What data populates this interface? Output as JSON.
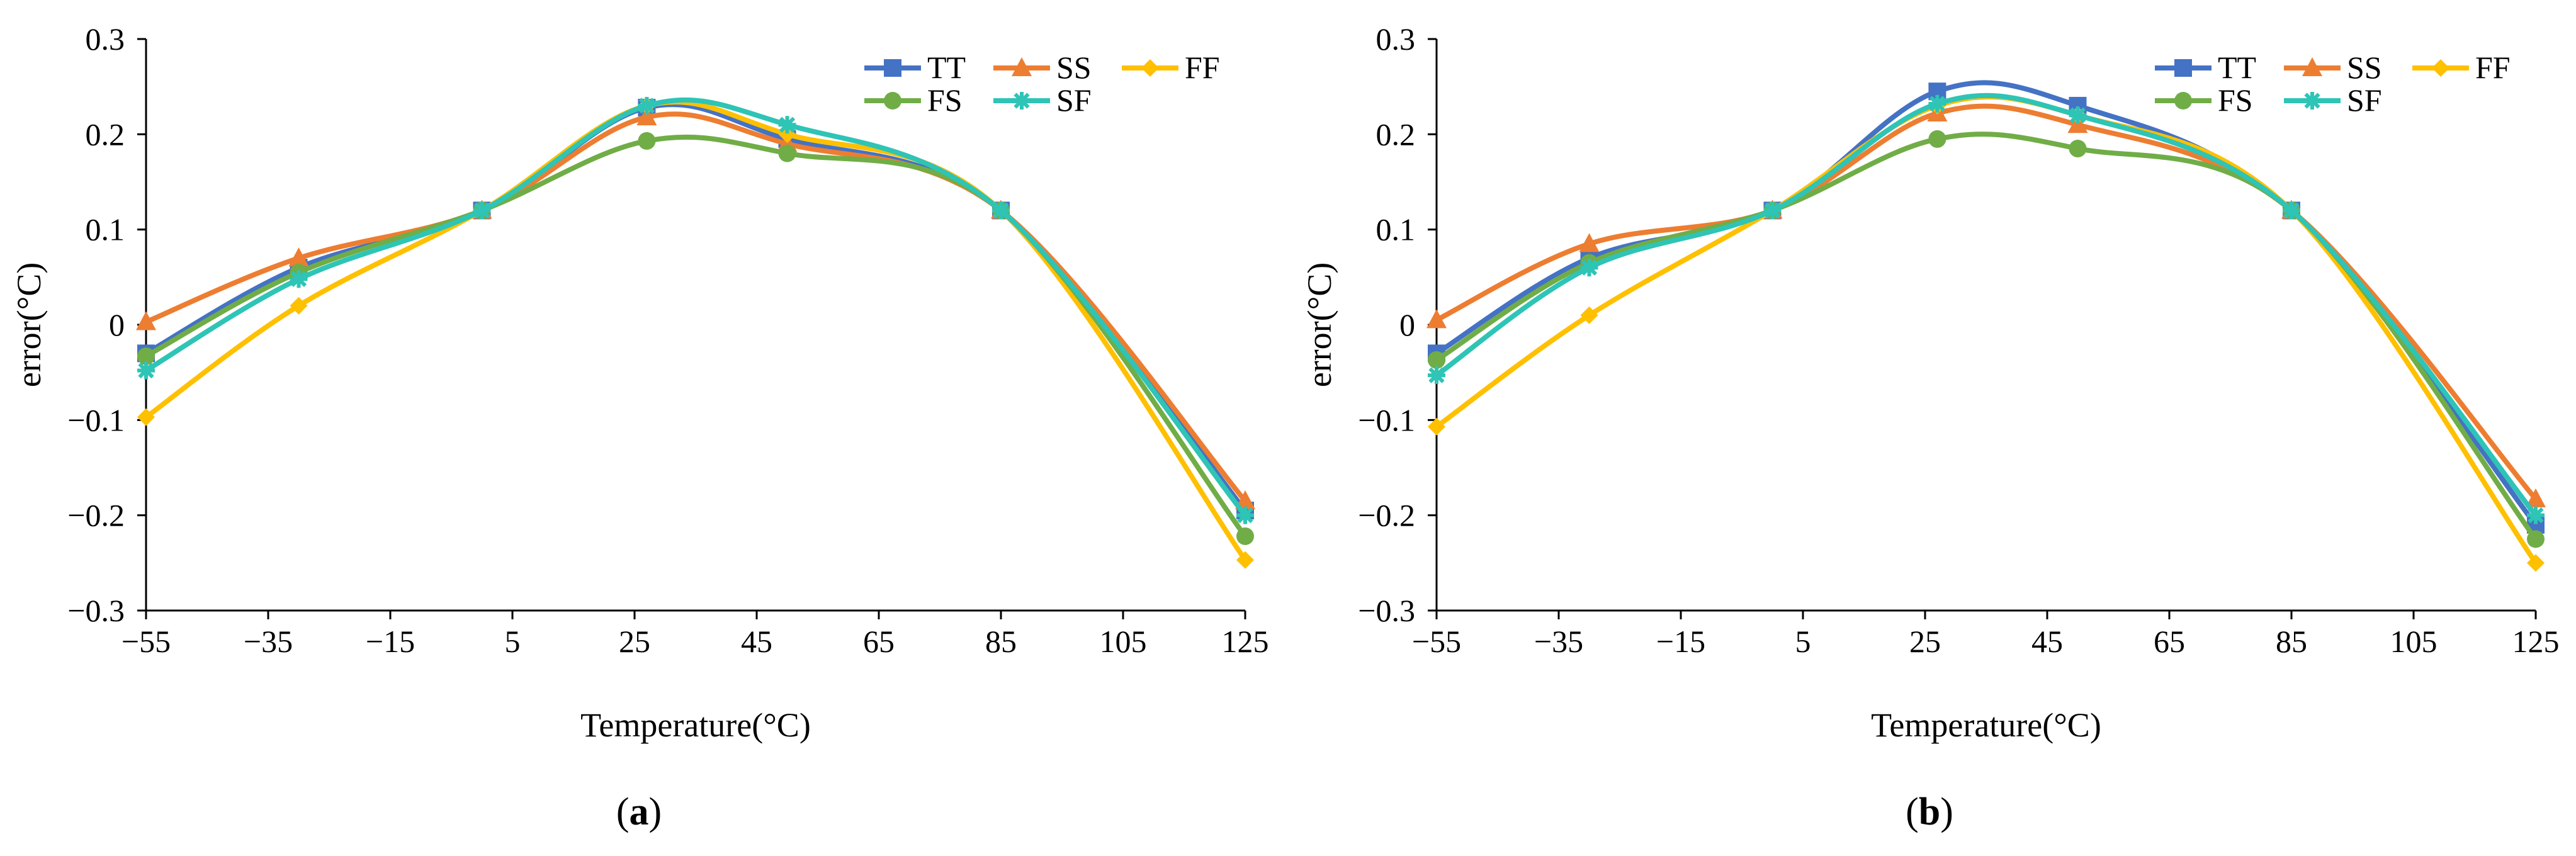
{
  "figure": {
    "panel_labels": [
      {
        "open": "(",
        "letter": "a",
        "close": ")"
      },
      {
        "open": "(",
        "letter": "b",
        "close": ")"
      }
    ]
  },
  "colors": {
    "TT": "#4472C4",
    "SS": "#ED7D31",
    "FF": "#FFC000",
    "FS": "#70AD47",
    "SF": "#2EC4B6",
    "axis": "#000000"
  },
  "chart_data": [
    {
      "type": "line",
      "title": "",
      "xlabel": "Temperature(°C)",
      "ylabel": "error(°C)",
      "xlim": [
        -55,
        125
      ],
      "ylim": [
        -0.3,
        0.3
      ],
      "xticks": [
        -55,
        -35,
        -15,
        5,
        25,
        45,
        65,
        85,
        105,
        125
      ],
      "yticks": [
        -0.3,
        -0.2,
        -0.1,
        0,
        0.1,
        0.2,
        0.3
      ],
      "xtick_labels": [
        "−55",
        "−35",
        "−15",
        "5",
        "25",
        "45",
        "65",
        "85",
        "105",
        "125"
      ],
      "ytick_labels": [
        "−0.3",
        "−0.2",
        "−0.1",
        "0",
        "0.1",
        "0.2",
        "0.3"
      ],
      "smooth": true,
      "legend_position": "top-right",
      "x": [
        -55,
        -30,
        0,
        27,
        50,
        85,
        125
      ],
      "series": [
        {
          "name": "TT",
          "marker": "square",
          "values": [
            -0.03,
            0.06,
            0.12,
            0.228,
            0.195,
            0.12,
            -0.195
          ]
        },
        {
          "name": "SS",
          "marker": "triangle",
          "values": [
            0.003,
            0.07,
            0.12,
            0.218,
            0.19,
            0.12,
            -0.185
          ]
        },
        {
          "name": "FF",
          "marker": "diamond",
          "values": [
            -0.097,
            0.02,
            0.12,
            0.23,
            0.2,
            0.12,
            -0.247
          ]
        },
        {
          "name": "FS",
          "marker": "circle",
          "values": [
            -0.033,
            0.055,
            0.12,
            0.193,
            0.18,
            0.12,
            -0.222
          ]
        },
        {
          "name": "SF",
          "marker": "asterisk",
          "values": [
            -0.048,
            0.048,
            0.12,
            0.23,
            0.21,
            0.12,
            -0.2
          ]
        }
      ]
    },
    {
      "type": "line",
      "title": "",
      "xlabel": "Temperature(°C)",
      "ylabel": "error(°C)",
      "xlim": [
        -55,
        125
      ],
      "ylim": [
        -0.3,
        0.3
      ],
      "xticks": [
        -55,
        -35,
        -15,
        5,
        25,
        45,
        65,
        85,
        105,
        125
      ],
      "yticks": [
        -0.3,
        -0.2,
        -0.1,
        0,
        0.1,
        0.2,
        0.3
      ],
      "xtick_labels": [
        "−55",
        "−35",
        "−15",
        "5",
        "25",
        "45",
        "65",
        "85",
        "105",
        "125"
      ],
      "ytick_labels": [
        "−0.3",
        "−0.2",
        "−0.1",
        "0",
        "0.1",
        "0.2",
        "0.3"
      ],
      "smooth": true,
      "legend_position": "top-right",
      "x": [
        -55,
        -30,
        0,
        27,
        50,
        85,
        125
      ],
      "series": [
        {
          "name": "TT",
          "marker": "square",
          "values": [
            -0.03,
            0.07,
            0.12,
            0.245,
            0.23,
            0.12,
            -0.21
          ]
        },
        {
          "name": "SS",
          "marker": "triangle",
          "values": [
            0.005,
            0.085,
            0.12,
            0.222,
            0.21,
            0.12,
            -0.183
          ]
        },
        {
          "name": "FF",
          "marker": "diamond",
          "values": [
            -0.107,
            0.01,
            0.12,
            0.23,
            0.22,
            0.12,
            -0.25
          ]
        },
        {
          "name": "FS",
          "marker": "circle",
          "values": [
            -0.037,
            0.065,
            0.12,
            0.195,
            0.185,
            0.12,
            -0.225
          ]
        },
        {
          "name": "SF",
          "marker": "asterisk",
          "values": [
            -0.053,
            0.06,
            0.12,
            0.232,
            0.22,
            0.12,
            -0.2
          ]
        }
      ]
    }
  ]
}
